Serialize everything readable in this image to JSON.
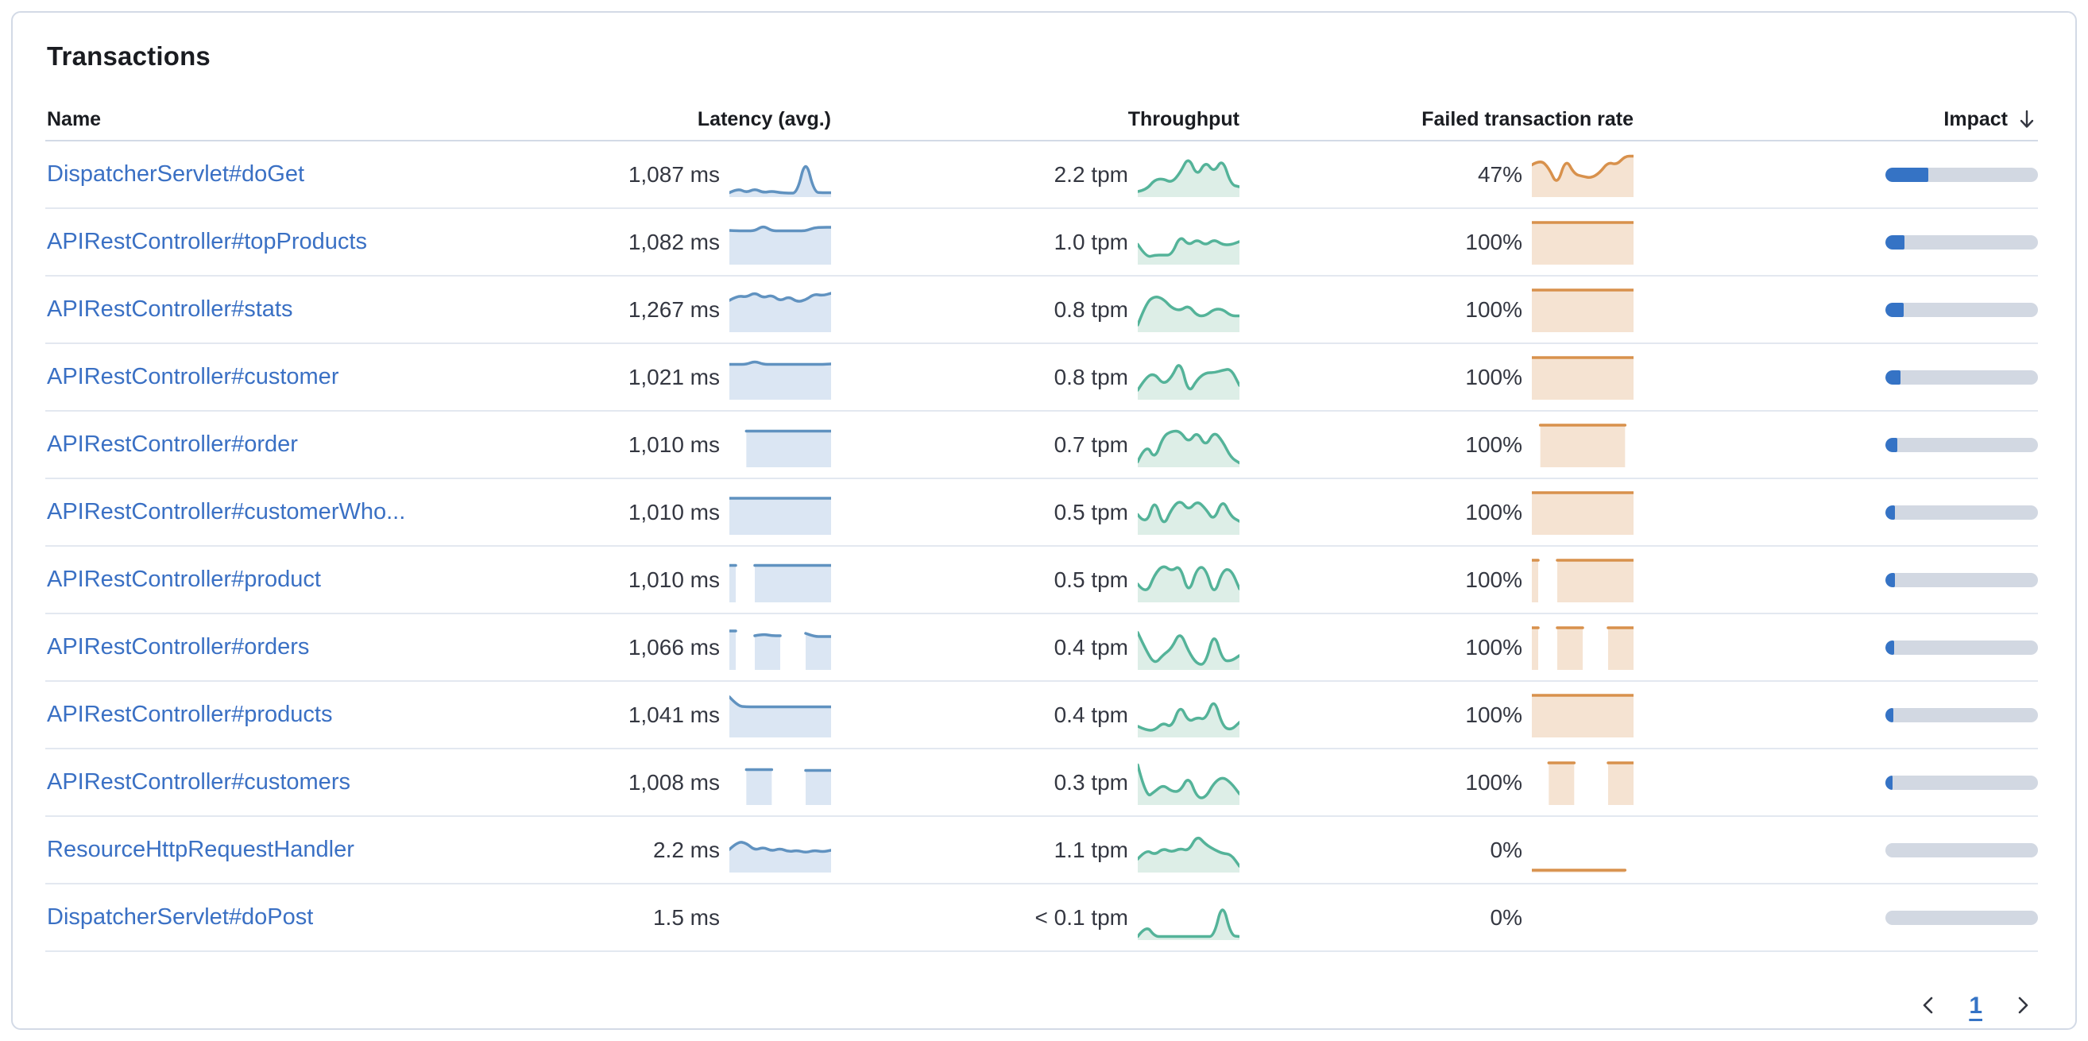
{
  "panel": {
    "title": "Transactions"
  },
  "colors": {
    "link_blue": "#3a70c4",
    "header_text": "#1a1c21",
    "value_text": "#343741",
    "latency_line": "#6092C0",
    "latency_fill": "#dbe6f3",
    "throughput_line": "#54B399",
    "throughput_fill": "#ddeee7",
    "failed_line": "#D8914C",
    "failed_fill": "#f5e3d2",
    "impact_fill": "#3573c5",
    "impact_track": "#d2d8e2",
    "row_divider": "#e3e8f0",
    "header_divider": "#d3dae6"
  },
  "table": {
    "columns": {
      "name": "Name",
      "latency": "Latency (avg.)",
      "throughput": "Throughput",
      "failed": "Failed transaction rate",
      "impact": "Impact",
      "impact_sort_icon": "arrow-down-icon",
      "impact_sort": "descending"
    },
    "rows": [
      {
        "name": "DispatcherServlet#doGet",
        "latency": "1,087 ms",
        "throughput": "2.2 tpm",
        "failed_rate": "47%",
        "impact_pct": 28,
        "latency_spark": [
          0.05,
          0.16,
          0.05,
          0.15,
          0.05,
          0.09,
          0.05,
          0.04,
          0.04,
          0.93,
          0.06,
          0.05,
          0.05
        ],
        "throughput_spark": [
          0.08,
          0.12,
          0.38,
          0.4,
          0.3,
          0.55,
          0.97,
          0.45,
          0.85,
          0.55,
          0.92,
          0.25,
          0.2
        ],
        "failed_spark": [
          0.75,
          0.88,
          0.68,
          0.22,
          0.92,
          0.52,
          0.46,
          0.42,
          0.55,
          0.82,
          0.75,
          0.97,
          0.97
        ]
      },
      {
        "name": "APIRestController#topProducts",
        "latency": "1,082 ms",
        "throughput": "1.0 tpm",
        "failed_rate": "100%",
        "impact_pct": 12.5,
        "latency_spark": [
          0.8,
          0.79,
          0.79,
          0.79,
          0.92,
          0.79,
          0.79,
          0.79,
          0.79,
          0.79,
          0.87,
          0.88,
          0.88
        ],
        "throughput_spark": [
          0.45,
          0.12,
          0.18,
          0.18,
          0.18,
          0.68,
          0.42,
          0.58,
          0.42,
          0.58,
          0.44,
          0.44,
          0.52
        ],
        "failed_spark": [
          1,
          1,
          1,
          1,
          1,
          1,
          1,
          1,
          1,
          1,
          1,
          1,
          1
        ]
      },
      {
        "name": "APIRestController#stats",
        "latency": "1,267 ms",
        "throughput": "0.8 tpm",
        "failed_rate": "100%",
        "impact_pct": 12,
        "latency_spark": [
          0.74,
          0.86,
          0.82,
          0.94,
          0.8,
          0.88,
          0.72,
          0.84,
          0.7,
          0.75,
          0.9,
          0.86,
          0.92
        ],
        "throughput_spark": [
          0.12,
          0.68,
          0.85,
          0.78,
          0.55,
          0.48,
          0.62,
          0.35,
          0.35,
          0.52,
          0.52,
          0.35,
          0.35
        ],
        "failed_spark": [
          1,
          1,
          1,
          1,
          1,
          1,
          1,
          1,
          1,
          1,
          1,
          1,
          1
        ]
      },
      {
        "name": "APIRestController#customer",
        "latency": "1,021 ms",
        "throughput": "0.8 tpm",
        "failed_rate": "100%",
        "impact_pct": 10,
        "latency_spark": [
          0.83,
          0.83,
          0.83,
          0.91,
          0.83,
          0.83,
          0.83,
          0.83,
          0.83,
          0.83,
          0.83,
          0.83,
          0.84
        ],
        "throughput_spark": [
          0.18,
          0.52,
          0.6,
          0.32,
          0.5,
          0.95,
          0.08,
          0.45,
          0.62,
          0.62,
          0.68,
          0.72,
          0.3
        ],
        "failed_spark": [
          1,
          1,
          1,
          1,
          1,
          1,
          1,
          1,
          1,
          1,
          1,
          1,
          1
        ]
      },
      {
        "name": "APIRestController#order",
        "latency": "1,010 ms",
        "throughput": "0.7 tpm",
        "failed_rate": "100%",
        "impact_pct": 8,
        "latency_spark": [
          null,
          null,
          0.85,
          0.85,
          0.85,
          0.85,
          0.85,
          0.85,
          0.85,
          0.85,
          0.85,
          0.85,
          0.85
        ],
        "throughput_spark": [
          0.08,
          0.55,
          0.12,
          0.72,
          0.85,
          0.85,
          0.55,
          0.85,
          0.45,
          0.85,
          0.6,
          0.18,
          0.05
        ],
        "failed_spark": [
          null,
          1,
          1,
          1,
          1,
          1,
          1,
          1,
          1,
          1,
          1,
          1,
          null
        ]
      },
      {
        "name": "APIRestController#customerWho...",
        "latency": "1,010 ms",
        "throughput": "0.5 tpm",
        "failed_rate": "100%",
        "impact_pct": 6.5,
        "latency_spark": [
          0.86,
          0.86,
          0.86,
          0.86,
          0.86,
          0.86,
          0.86,
          0.86,
          0.86,
          0.86,
          0.86,
          0.86,
          0.86
        ],
        "throughput_spark": [
          0.45,
          0.15,
          0.88,
          0.12,
          0.6,
          0.82,
          0.55,
          0.8,
          0.6,
          0.28,
          0.85,
          0.4,
          0.28
        ],
        "failed_spark": [
          1,
          1,
          1,
          1,
          1,
          1,
          1,
          1,
          1,
          1,
          1,
          1,
          1
        ]
      },
      {
        "name": "APIRestController#product",
        "latency": "1,010 ms",
        "throughput": "0.5 tpm",
        "failed_rate": "100%",
        "impact_pct": 6,
        "latency_spark": [
          0.87,
          null,
          null,
          0.87,
          0.87,
          0.87,
          0.87,
          0.87,
          0.87,
          0.87,
          0.87,
          0.87,
          0.87
        ],
        "throughput_spark": [
          0.4,
          0.12,
          0.65,
          0.88,
          0.72,
          0.88,
          0.12,
          0.82,
          0.82,
          0.08,
          0.75,
          0.78,
          0.28
        ],
        "failed_spark": [
          1,
          null,
          null,
          1,
          1,
          1,
          1,
          1,
          1,
          1,
          1,
          1,
          1
        ]
      },
      {
        "name": "APIRestController#orders",
        "latency": "1,066 ms",
        "throughput": "0.4 tpm",
        "failed_rate": "100%",
        "impact_pct": 5.5,
        "latency_spark": [
          0.92,
          null,
          null,
          0.8,
          0.84,
          0.8,
          0.8,
          null,
          null,
          0.86,
          0.78,
          0.78,
          0.78
        ],
        "throughput_spark": [
          0.88,
          0.42,
          0.08,
          0.32,
          0.48,
          0.92,
          0.4,
          0.08,
          0.08,
          0.92,
          0.18,
          0.16,
          0.3
        ],
        "failed_spark": [
          1,
          null,
          null,
          1,
          1,
          1,
          1,
          null,
          null,
          1,
          1,
          1,
          1
        ]
      },
      {
        "name": "APIRestController#products",
        "latency": "1,041 ms",
        "throughput": "0.4 tpm",
        "failed_rate": "100%",
        "impact_pct": 5,
        "latency_spark": [
          0.96,
          0.73,
          0.71,
          0.71,
          0.71,
          0.71,
          0.71,
          0.71,
          0.71,
          0.71,
          0.71,
          0.71,
          0.71
        ],
        "throughput_spark": [
          0.22,
          0.12,
          0.12,
          0.32,
          0.18,
          0.78,
          0.32,
          0.45,
          0.38,
          0.95,
          0.22,
          0.12,
          0.32
        ],
        "failed_spark": [
          1,
          1,
          1,
          1,
          1,
          1,
          1,
          1,
          1,
          1,
          1,
          1,
          1
        ]
      },
      {
        "name": "APIRestController#customers",
        "latency": "1,008 ms",
        "throughput": "0.3 tpm",
        "failed_rate": "100%",
        "impact_pct": 4.5,
        "latency_spark": [
          null,
          null,
          0.83,
          0.83,
          0.83,
          0.83,
          null,
          null,
          null,
          0.81,
          0.81,
          0.81,
          0.81
        ],
        "throughput_spark": [
          0.95,
          0.12,
          0.28,
          0.45,
          0.28,
          0.28,
          0.68,
          0.12,
          0.12,
          0.5,
          0.65,
          0.5,
          0.22
        ],
        "failed_spark": [
          null,
          null,
          1,
          1,
          1,
          1,
          null,
          null,
          null,
          1,
          1,
          1,
          1
        ]
      },
      {
        "name": "ResourceHttpRequestHandler",
        "latency": "2.2 ms",
        "throughput": "1.1 tpm",
        "failed_rate": "0%",
        "impact_pct": 0,
        "latency_spark": [
          0.52,
          0.72,
          0.68,
          0.5,
          0.58,
          0.48,
          0.55,
          0.46,
          0.5,
          0.44,
          0.5,
          0.46,
          0.5
        ],
        "throughput_spark": [
          0.28,
          0.52,
          0.38,
          0.55,
          0.45,
          0.55,
          0.48,
          0.88,
          0.65,
          0.52,
          0.42,
          0.4,
          0.1
        ],
        "failed_spark": [
          0,
          0,
          0,
          0,
          0,
          0,
          0,
          0,
          0,
          0,
          0,
          0,
          null
        ]
      },
      {
        "name": "DispatcherServlet#doPost",
        "latency": "1.5 ms",
        "throughput": "< 0.1 tpm",
        "failed_rate": "0%",
        "impact_pct": 0,
        "latency_spark": null,
        "throughput_spark": [
          0.03,
          0.32,
          0.03,
          0.03,
          0.03,
          0.03,
          0.03,
          0.03,
          0.03,
          0.03,
          0.92,
          0.05,
          0.03
        ],
        "failed_spark": null
      }
    ]
  },
  "pagination": {
    "prev_icon": "chevron-left-icon",
    "next_icon": "chevron-right-icon",
    "current_page": "1"
  }
}
